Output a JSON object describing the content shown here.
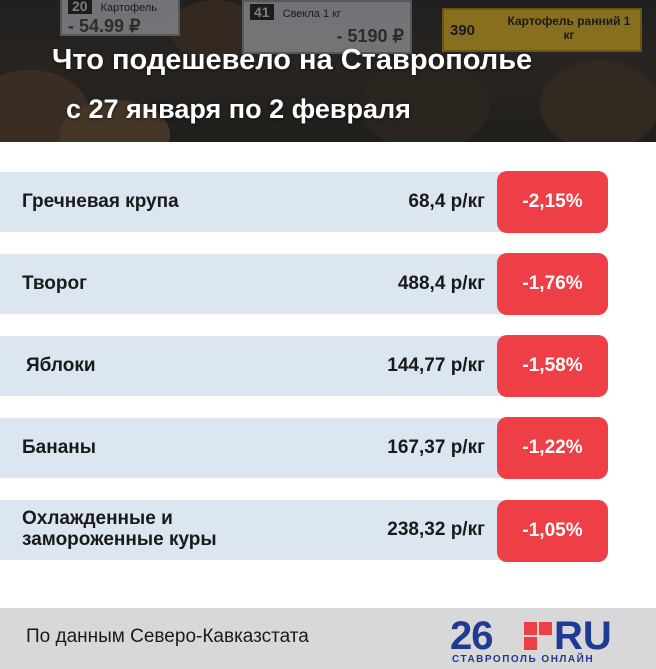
{
  "header": {
    "title": "Что подешевело на Ставрополье",
    "subtitle": "с 27 января по 2 февраля",
    "photo_tags": [
      {
        "num": "20",
        "label": "Картофель",
        "price": "- 54.99 ₽"
      },
      {
        "num": "41",
        "label": "Свекла 1 кг",
        "price": "- 5190 ₽"
      },
      {
        "num": "390",
        "label": "Картофель ранний 1 кг"
      }
    ]
  },
  "rows": [
    {
      "name": "Гречневая крупа",
      "price": "68,4 р/кг",
      "change": "-2,15%"
    },
    {
      "name": "Творог",
      "price": "488,4 р/кг",
      "change": "-1,76%"
    },
    {
      "name": "Яблоки",
      "price": "144,77 р/кг",
      "change": "-1,58%"
    },
    {
      "name": "Бананы",
      "price": "167,37 р/кг",
      "change": "-1,22%"
    },
    {
      "name": "Охлажденные и замороженные куры",
      "price": "238,32 р/кг",
      "change": "-1,05%"
    }
  ],
  "footer": {
    "source": "По данным Северо-Кавказстата",
    "logo_digits": "26",
    "logo_ru": "RU",
    "logo_city": "СТАВРОПОЛЬ ОНЛАЙН"
  },
  "colors": {
    "badge": "#ee3e46",
    "row_bg": "#dce6f0",
    "logo_blue": "#1f3a93",
    "footer_bg": "#d8d8d8"
  }
}
